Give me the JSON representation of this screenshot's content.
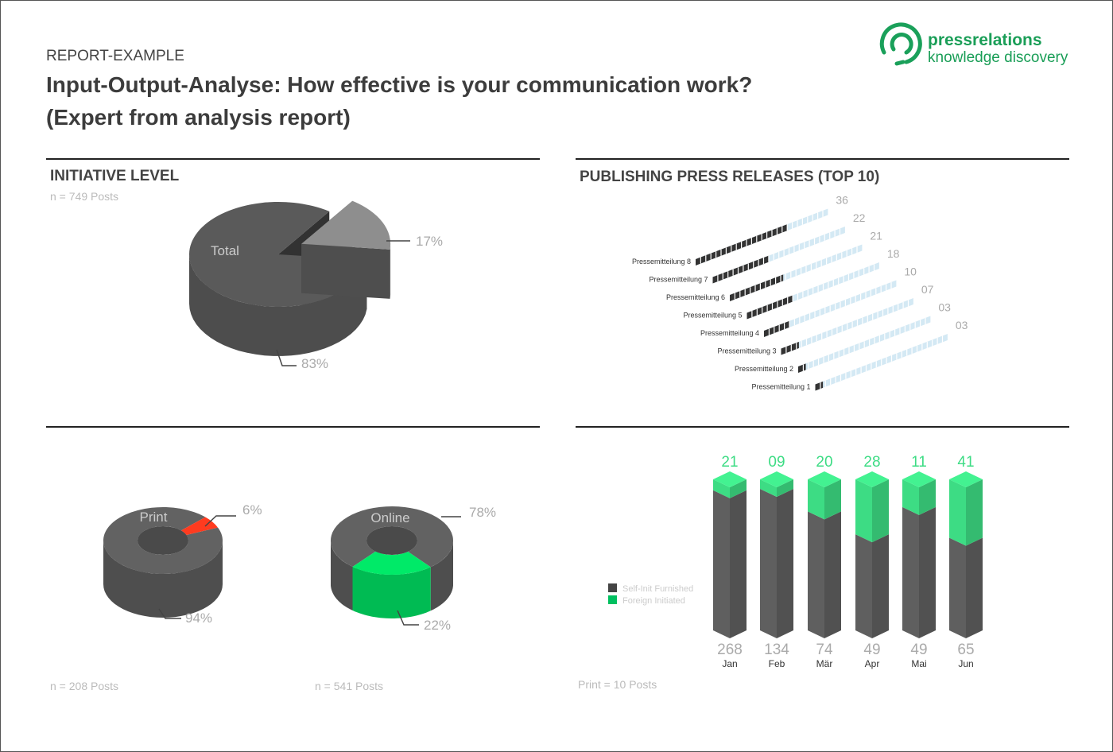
{
  "header": {
    "label": "REPORT-EXAMPLE",
    "title": "Input-Output-Analyse: How effective is your communication work? (Expert from analysis report)",
    "logo": {
      "name": "pressrelations",
      "tagline": "knowledge discovery"
    }
  },
  "chart_data": [
    {
      "type": "pie3d",
      "title": "INITIATIVE LEVEL",
      "subtitle": "n = 749 Posts",
      "annotation": "Total",
      "values": [
        83,
        17
      ],
      "value_labels": [
        "83%",
        "17%"
      ],
      "colors": [
        "#5a5a5a",
        "#8e8e8e"
      ]
    },
    {
      "type": "isobar",
      "title": "PUBLISHING PRESS RELEASES (TOP 10)",
      "categories": [
        "Pressemitteilung 8",
        "Pressemitteilung 7",
        "Pressemitteilung 6",
        "Pressemitteilung 5",
        "Pressemitteilung 4",
        "Pressemitteilung 3",
        "Pressemitteilung 2",
        "Pressemitteilung 1"
      ],
      "values": [
        36,
        22,
        21,
        18,
        10,
        7,
        3,
        3
      ],
      "value_labels": [
        "36",
        "22",
        "21",
        "18",
        "10",
        "07",
        "03",
        "03"
      ],
      "xlim": [
        0,
        52
      ],
      "color": "#333333",
      "track_color": "#d4e9f4"
    },
    {
      "type": "donut3d",
      "annotation": "Print",
      "subtitle": "n = 208 Posts",
      "values": [
        94,
        6
      ],
      "value_labels": [
        "94%",
        "6%"
      ],
      "colors": [
        "#626262",
        "#ff3b1f"
      ]
    },
    {
      "type": "donut3d",
      "annotation": "Online",
      "subtitle": "n = 541 Posts",
      "values": [
        78,
        22
      ],
      "value_labels": [
        "78%",
        "22%"
      ],
      "colors": [
        "#626262",
        "#00ea68"
      ]
    },
    {
      "type": "stacked3d",
      "categories": [
        "Jan",
        "Feb",
        "Mär",
        "Apr",
        "Mai",
        "Jun"
      ],
      "series": [
        {
          "name": "Self-Init Furnished",
          "color": "#5f5f5f",
          "values": [
            268,
            134,
            74,
            49,
            49,
            65
          ]
        },
        {
          "name": "Foreign Initiated",
          "color": "#3ddc84",
          "values": [
            21,
            9,
            20,
            28,
            11,
            41
          ],
          "value_labels": [
            "21",
            "09",
            "20",
            "28",
            "11",
            "41"
          ]
        }
      ],
      "note": "Print = 10 Posts"
    }
  ]
}
